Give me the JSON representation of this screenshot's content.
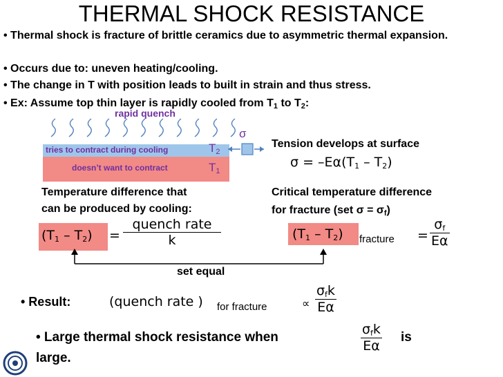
{
  "title": "THERMAL SHOCK RESISTANCE",
  "bullets": [
    "• Thermal shock is fracture of brittle ceramics due to asymmetric thermal expansion.",
    "• Occurs due to:  uneven heating/cooling.",
    "• The change in T with position leads to built in strain and thus stress.",
    "• Ex:  Assume top thin layer is rapidly cooled from T"
  ],
  "bullet4_tail": ":",
  "diagram": {
    "rapid_quench": "rapid quench",
    "top_layer_label": "tries to contract during cooling",
    "bottom_layer_label": "doesn’t want to contract",
    "t2": "T",
    "t1": "T",
    "sigma": "σ"
  },
  "tension_label": "Tension develops at surface",
  "tension_formula": "σ = –Eα(T",
  "temp_diff_label": [
    "Temperature difference that",
    "can be produced by cooling:"
  ],
  "critical_label": "Critical temperature difference",
  "critical_label2": "for fracture (set σ = σ",
  "eq_left": {
    "lhs": "(T",
    "minus": " – T",
    "close": ")",
    "eq": "=",
    "num": "quench  rate",
    "den": "k"
  },
  "eq_right": {
    "lhs": "(T",
    "minus": " – T",
    "close": ")",
    "sub": "fracture",
    "eq": "=",
    "num": "σ",
    "den": "Eα"
  },
  "set_equal": "set equal",
  "result_label": "• Result:",
  "result_expr": "(quench  rate )",
  "result_sub": "for  fracture",
  "prop": "∝",
  "result_num": "σ",
  "result_den": "Eα",
  "large_text1": "• Large thermal shock resistance when",
  "large_is": "is",
  "large_text2": "large.",
  "colors": {
    "pink": "#f28a86",
    "blue_layer": "#9fc6ea",
    "purple": "#7030a0",
    "arrow_blue": "#4f81bd"
  }
}
